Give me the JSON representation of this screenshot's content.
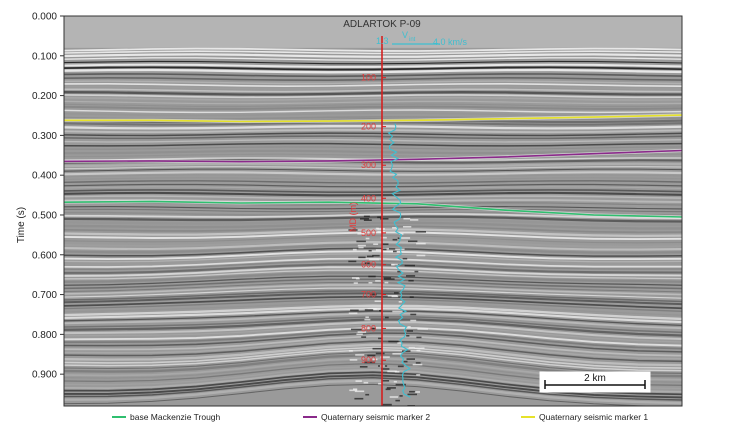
{
  "figure": {
    "well_label": "ADLARTOK P-09",
    "y_axis_label": "Time (s)",
    "y_ticks": [
      "0.000",
      "0.100",
      "0.200",
      "0.300",
      "0.400",
      "0.500",
      "0.600",
      "0.700",
      "0.800",
      "0.900"
    ],
    "y_range_s": [
      0.0,
      0.98
    ],
    "velocity_label": "V",
    "velocity_subscript": "int",
    "velocity_min_label": "1.3",
    "velocity_max_label": "4.0 km/s",
    "depth_axis_label": "MD (m)",
    "depth_ticks": [
      "100",
      "200",
      "300",
      "400",
      "500",
      "600",
      "700",
      "800",
      "900"
    ],
    "depth_tick_times_s": [
      0.155,
      0.278,
      0.375,
      0.458,
      0.545,
      0.625,
      0.7,
      0.785,
      0.865
    ],
    "scale_bar_label": "2 km",
    "colors": {
      "well": "#d42020",
      "velocity": "#3fbfd0",
      "base_mackenzie": "#2fbf6f",
      "quaternary_2": "#8a2a8a",
      "quaternary_1": "#e6e22a",
      "depth_text": "#e23b3b"
    },
    "horizons": [
      {
        "name": "Quaternary seismic marker 1",
        "times_s": [
          0.262,
          0.262,
          0.265,
          0.264,
          0.262,
          0.258,
          0.254,
          0.249
        ]
      },
      {
        "name": "Quaternary seismic marker 2",
        "times_s": [
          0.365,
          0.364,
          0.366,
          0.364,
          0.36,
          0.354,
          0.346,
          0.338
        ]
      },
      {
        "name": "base Mackenzie Trough",
        "times_s": [
          0.468,
          0.466,
          0.47,
          0.468,
          0.472,
          0.488,
          0.5,
          0.505
        ]
      }
    ]
  },
  "legend": {
    "items": [
      {
        "label": "base Mackenzie Trough",
        "color": "#2fbf6f"
      },
      {
        "label": "Quaternary seismic marker 2",
        "color": "#8a2a8a"
      },
      {
        "label": "Quaternary seismic marker 1",
        "color": "#e6e22a"
      }
    ]
  }
}
